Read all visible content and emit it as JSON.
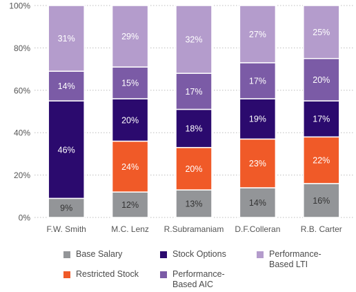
{
  "chart_data": {
    "type": "bar",
    "stacked": true,
    "categories": [
      "F.W. Smith",
      "M.C. Lenz",
      "R.Subramaniam",
      "D.F.Colleran",
      "R.B. Carter"
    ],
    "series": [
      {
        "name": "Base Salary",
        "color": "#939598",
        "values": [
          9,
          12,
          13,
          14,
          16
        ],
        "labels": [
          "9%",
          "12%",
          "13%",
          "14%",
          "16%"
        ]
      },
      {
        "name": "Restricted Stock",
        "color": "#f05a28",
        "values": [
          0,
          24,
          20,
          23,
          22
        ],
        "labels": [
          "",
          "24%",
          "20%",
          "23%",
          "22%"
        ]
      },
      {
        "name": "Stock Options",
        "color": "#2b0a6e",
        "values": [
          46,
          20,
          18,
          19,
          17
        ],
        "labels": [
          "46%",
          "20%",
          "18%",
          "19%",
          "17%"
        ]
      },
      {
        "name": "Performance-\nBased AIC",
        "color": "#7b5ba6",
        "values": [
          14,
          15,
          17,
          17,
          20
        ],
        "labels": [
          "14%",
          "15%",
          "17%",
          "17%",
          "20%"
        ]
      },
      {
        "name": "Performance-\nBased LTI",
        "color": "#b49ccc",
        "values": [
          31,
          29,
          32,
          27,
          25
        ],
        "labels": [
          "31%",
          "29%",
          "32%",
          "27%",
          "25%"
        ]
      }
    ],
    "ylim": [
      0,
      100
    ],
    "yticks": [
      "0%",
      "20%",
      "40%",
      "60%",
      "80%",
      "100%"
    ],
    "grid": true,
    "legend_position": "bottom"
  }
}
